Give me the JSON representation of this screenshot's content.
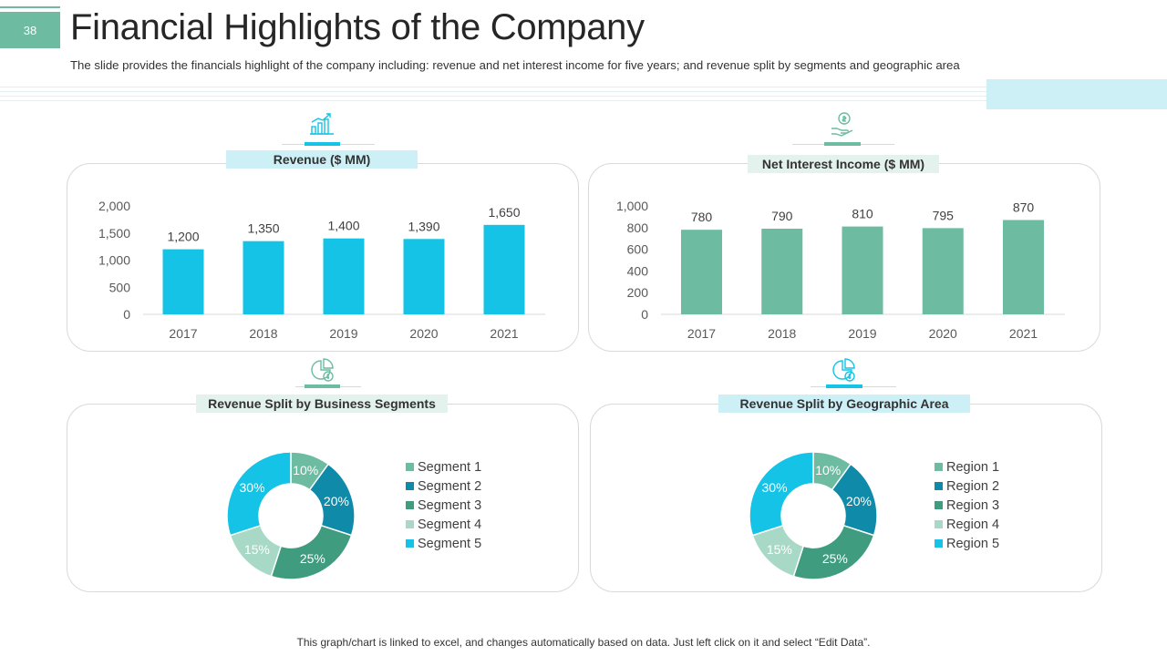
{
  "page": {
    "number": "38",
    "title": "Financial Highlights of the Company",
    "subtitle": "The slide provides the financials highlight of the company including: revenue and net interest income for five years; and revenue split by segments and geographic area",
    "footer": "This graph/chart is linked to excel, and changes automatically based on data. Just left click on it and select “Edit Data”."
  },
  "colors": {
    "cyan": "#14c3e6",
    "green": "#6dbca1",
    "teal": "#0f8aa8",
    "darkgreen": "#3f9c7e",
    "lightgreen": "#a8d9c7"
  },
  "icons": [
    "growth-chart-icon",
    "money-hand-icon",
    "pie-dollar-icon",
    "pie-dollar-icon"
  ],
  "chart_data": [
    {
      "id": "revenue",
      "type": "bar",
      "title": "Revenue ($ MM)",
      "categories": [
        "2017",
        "2018",
        "2019",
        "2020",
        "2021"
      ],
      "values": [
        1200,
        1350,
        1400,
        1390,
        1650
      ],
      "value_labels": [
        "1,200",
        "1,350",
        "1,400",
        "1,390",
        "1,650"
      ],
      "yticks": [
        "0",
        "500",
        "1,000",
        "1,500",
        "2,000"
      ],
      "ylim": [
        0,
        2000
      ],
      "color": "#14c3e6"
    },
    {
      "id": "nii",
      "type": "bar",
      "title": "Net Interest Income ($ MM)",
      "categories": [
        "2017",
        "2018",
        "2019",
        "2020",
        "2021"
      ],
      "values": [
        780,
        790,
        810,
        795,
        870
      ],
      "value_labels": [
        "780",
        "790",
        "810",
        "795",
        "870"
      ],
      "yticks": [
        "0",
        "200",
        "400",
        "600",
        "800",
        "1,000"
      ],
      "ylim": [
        0,
        1000
      ],
      "color": "#6dbca1"
    },
    {
      "id": "segments",
      "type": "pie",
      "title": "Revenue Split by Business Segments",
      "labels": [
        "Segment 1",
        "Segment 2",
        "Segment 3",
        "Segment 4",
        "Segment 5"
      ],
      "values": [
        10,
        20,
        25,
        15,
        30
      ],
      "value_labels": [
        "10%",
        "20%",
        "25%",
        "15%",
        "30%"
      ],
      "colors": [
        "#6dbca1",
        "#0f8aa8",
        "#3f9c7e",
        "#a8d9c7",
        "#14c3e6"
      ]
    },
    {
      "id": "geo",
      "type": "pie",
      "title": "Revenue Split by Geographic Area",
      "labels": [
        "Region 1",
        "Region 2",
        "Region 3",
        "Region 4",
        "Region 5"
      ],
      "values": [
        10,
        20,
        25,
        15,
        30
      ],
      "value_labels": [
        "10%",
        "20%",
        "25%",
        "15%",
        "30%"
      ],
      "colors": [
        "#6dbca1",
        "#0f8aa8",
        "#3f9c7e",
        "#a8d9c7",
        "#14c3e6"
      ]
    }
  ]
}
